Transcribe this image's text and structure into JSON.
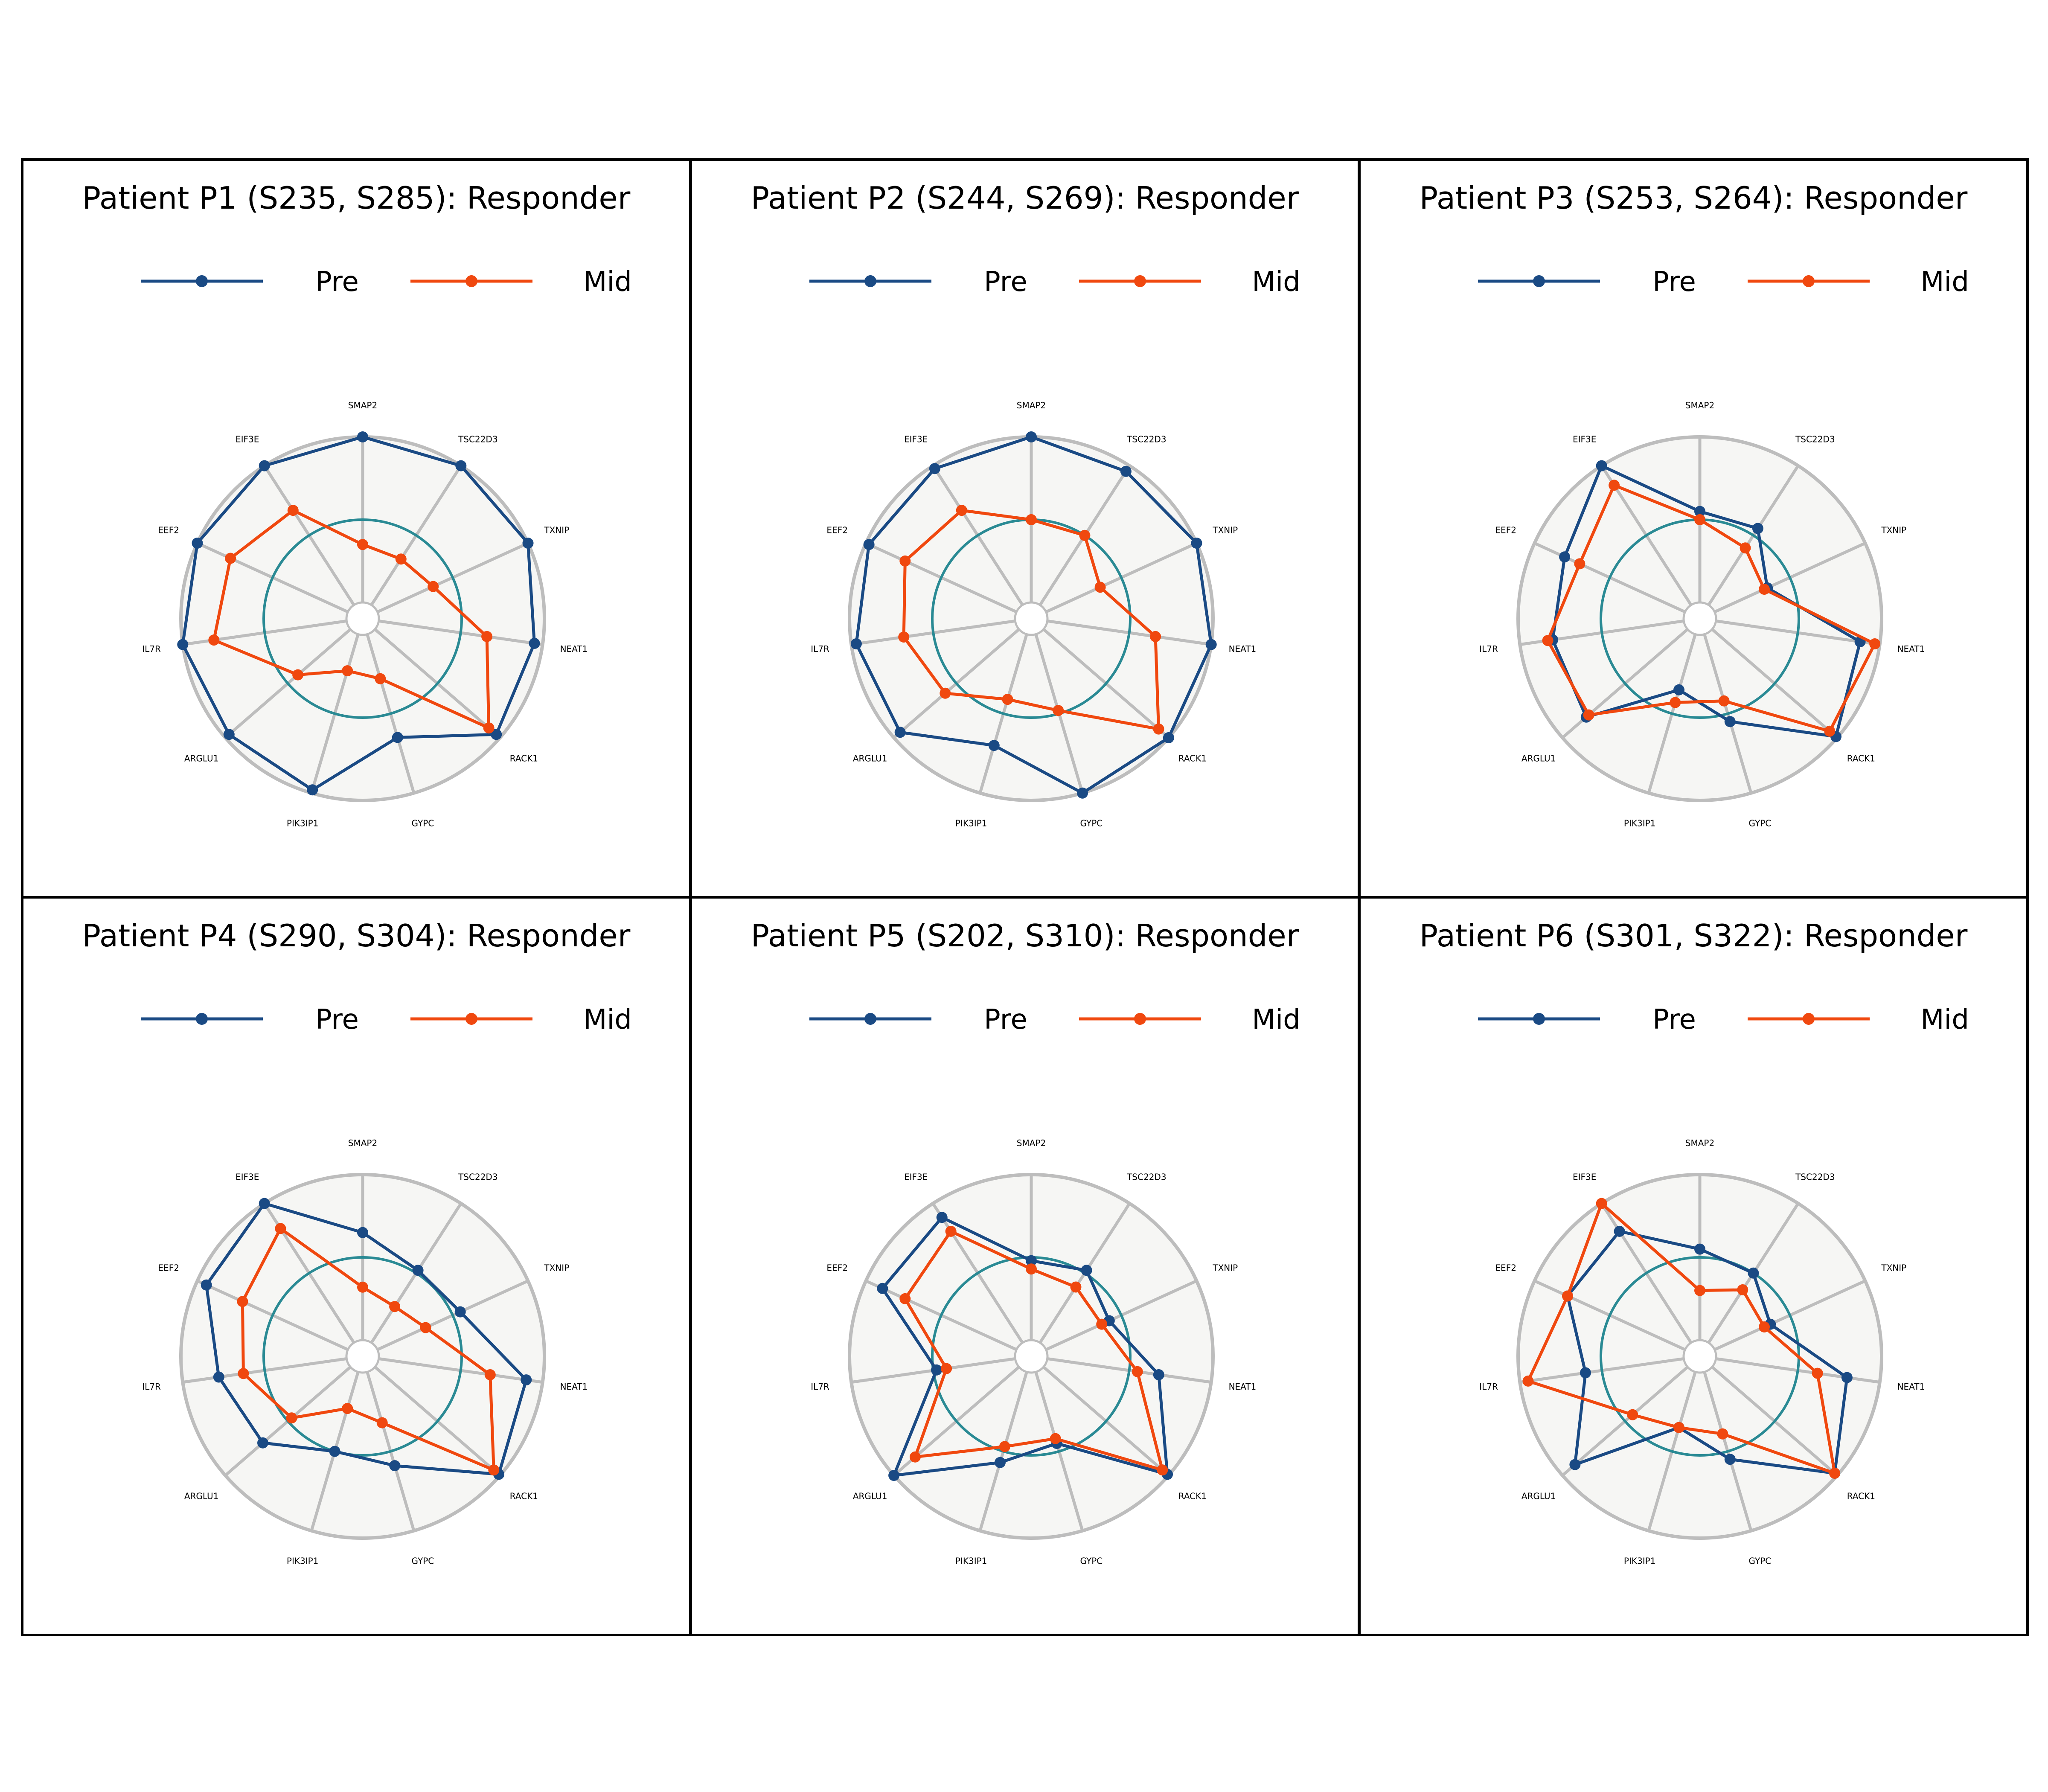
{
  "chart_data": [
    {
      "type": "radar",
      "title": "Patient P1 (S235, S285): Responder",
      "categories": [
        "SMAP2",
        "TSC22D3",
        "TXNIP",
        "NEAT1",
        "RACK1",
        "GYPC",
        "PIK3IP1",
        "ARGLU1",
        "IL7R",
        "EEF2",
        "EIF3E"
      ],
      "series": [
        {
          "name": "Pre",
          "values": [
            1.0,
            1.0,
            1.0,
            0.95,
            0.97,
            0.65,
            0.98,
            0.97,
            1.0,
            1.0,
            1.0
          ]
        },
        {
          "name": "Mid",
          "values": [
            0.35,
            0.33,
            0.37,
            0.66,
            0.91,
            0.28,
            0.23,
            0.42,
            0.81,
            0.78,
            0.68
          ]
        }
      ],
      "reference_ring": 0.5,
      "legend": "top",
      "grid": true
    },
    {
      "type": "radar",
      "title": "Patient P2 (S244, S269): Responder",
      "categories": [
        "SMAP2",
        "TSC22D3",
        "TXNIP",
        "NEAT1",
        "RACK1",
        "GYPC",
        "PIK3IP1",
        "ARGLU1",
        "IL7R",
        "EEF2",
        "EIF3E"
      ],
      "series": [
        {
          "name": "Pre",
          "values": [
            1.0,
            0.96,
            1.0,
            1.0,
            1.0,
            1.0,
            0.7,
            0.95,
            0.97,
            0.98,
            0.98
          ]
        },
        {
          "name": "Mid",
          "values": [
            0.5,
            0.5,
            0.36,
            0.66,
            0.92,
            0.48,
            0.41,
            0.59,
            0.68,
            0.74,
            0.68
          ]
        }
      ],
      "reference_ring": 0.5,
      "legend": "top",
      "grid": true
    },
    {
      "type": "radar",
      "title": "Patient P3 (S253, S264): Responder",
      "categories": [
        "SMAP2",
        "TSC22D3",
        "TXNIP",
        "NEAT1",
        "RACK1",
        "GYPC",
        "PIK3IP1",
        "ARGLU1",
        "IL7R",
        "EEF2",
        "EIF3E"
      ],
      "series": [
        {
          "name": "Pre",
          "values": [
            0.55,
            0.55,
            0.35,
            0.88,
            0.99,
            0.55,
            0.35,
            0.81,
            0.8,
            0.8,
            1.0
          ]
        },
        {
          "name": "Mid",
          "values": [
            0.5,
            0.41,
            0.33,
            0.97,
            0.94,
            0.42,
            0.43,
            0.79,
            0.83,
            0.7,
            0.86
          ]
        }
      ],
      "reference_ring": 0.5,
      "legend": "top",
      "grid": true
    },
    {
      "type": "radar",
      "title": "Patient P4 (S290, S304): Responder",
      "categories": [
        "SMAP2",
        "TSC22D3",
        "TXNIP",
        "NEAT1",
        "RACK1",
        "GYPC",
        "PIK3IP1",
        "ARGLU1",
        "IL7R",
        "EEF2",
        "EIF3E"
      ],
      "series": [
        {
          "name": "Pre",
          "values": [
            0.65,
            0.52,
            0.55,
            0.9,
            0.99,
            0.59,
            0.5,
            0.7,
            0.78,
            0.94,
            1.0
          ]
        },
        {
          "name": "Mid",
          "values": [
            0.32,
            0.26,
            0.32,
            0.68,
            0.95,
            0.32,
            0.23,
            0.47,
            0.63,
            0.7,
            0.82
          ]
        }
      ],
      "reference_ring": 0.5,
      "legend": "top",
      "grid": true
    },
    {
      "type": "radar",
      "title": "Patient P5 (S202, S310): Responder",
      "categories": [
        "SMAP2",
        "TSC22D3",
        "TXNIP",
        "NEAT1",
        "RACK1",
        "GYPC",
        "PIK3IP1",
        "ARGLU1",
        "IL7R",
        "EEF2",
        "EIF3E"
      ],
      "series": [
        {
          "name": "Pre",
          "values": [
            0.48,
            0.52,
            0.42,
            0.68,
            0.99,
            0.45,
            0.57,
            1.0,
            0.48,
            0.89,
            0.9
          ]
        },
        {
          "name": "Mid",
          "values": [
            0.43,
            0.4,
            0.37,
            0.55,
            0.95,
            0.42,
            0.47,
            0.83,
            0.42,
            0.74,
            0.8
          ]
        }
      ],
      "reference_ring": 0.5,
      "legend": "top",
      "grid": true
    },
    {
      "type": "radar",
      "title": "Patient P6 (S301, S322): Responder",
      "categories": [
        "SMAP2",
        "TSC22D3",
        "TXNIP",
        "NEAT1",
        "RACK1",
        "GYPC",
        "PIK3IP1",
        "ARGLU1",
        "IL7R",
        "EEF2",
        "EIF3E"
      ],
      "series": [
        {
          "name": "Pre",
          "values": [
            0.55,
            0.5,
            0.37,
            0.8,
            0.98,
            0.55,
            0.35,
            0.9,
            0.6,
            0.78,
            0.8
          ]
        },
        {
          "name": "Mid",
          "values": [
            0.3,
            0.38,
            0.33,
            0.62,
            0.98,
            0.39,
            0.35,
            0.44,
            0.95,
            0.78,
            1.0
          ]
        }
      ],
      "reference_ring": 0.5,
      "legend": "top",
      "grid": true
    }
  ],
  "colors": {
    "pre": "#1a4a84",
    "mid": "#f0480f",
    "reference_ring": "#2a8a94",
    "grid": "#bdbdbd",
    "plot_background": "#f6f6f4",
    "panel_border": "#000000"
  }
}
